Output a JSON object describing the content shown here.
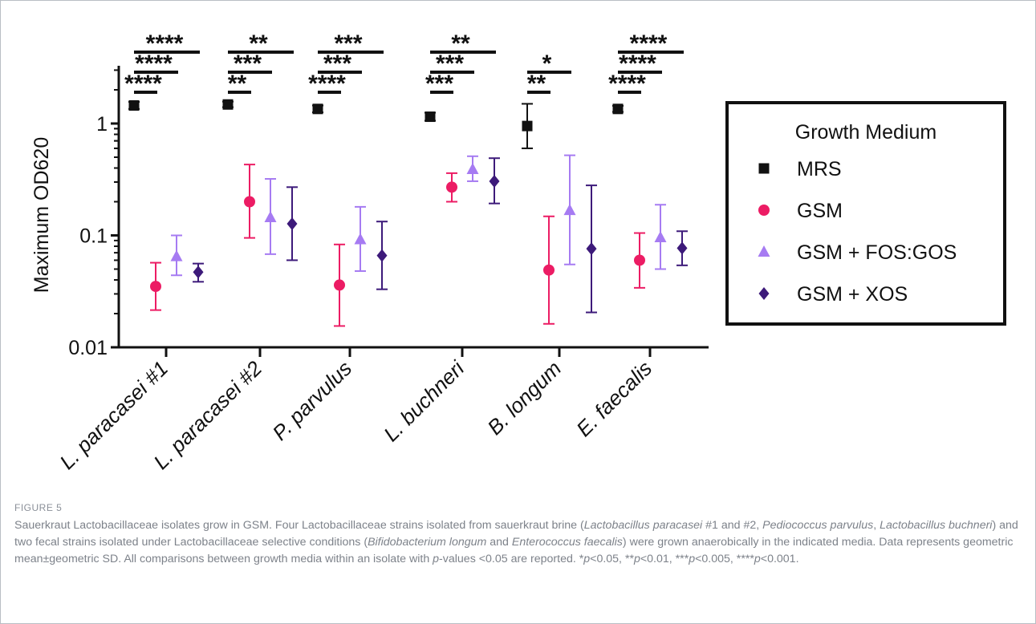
{
  "chart_data": {
    "type": "scatter",
    "yscale": "log",
    "ylabel": "Maximum OD620",
    "ylim": [
      0.01,
      3
    ],
    "yticks": [
      {
        "v": 1,
        "label": "1"
      },
      {
        "v": 0.1,
        "label": "0.1"
      },
      {
        "v": 0.01,
        "label": "0.01"
      }
    ],
    "categories": [
      "L. paracasei #1",
      "L. paracasei #2",
      "P. parvulus",
      "L. buchneri",
      "B. longum",
      "E. faecalis"
    ],
    "legend": {
      "title": "Growth Medium",
      "position": "right"
    },
    "series": [
      {
        "name": "MRS",
        "marker": "square",
        "color": "#111111",
        "values": [
          1.45,
          1.48,
          1.35,
          1.15,
          0.95,
          1.35
        ],
        "err_low": [
          1.35,
          1.4,
          1.26,
          1.06,
          0.6,
          1.27
        ],
        "err_high": [
          1.56,
          1.57,
          1.45,
          1.25,
          1.5,
          1.44
        ]
      },
      {
        "name": "GSM",
        "marker": "circle",
        "color": "#ec1c64",
        "values": [
          0.035,
          0.2,
          0.036,
          0.27,
          0.049,
          0.06
        ],
        "err_low": [
          0.0215,
          0.095,
          0.0155,
          0.2,
          0.0162,
          0.034
        ],
        "err_high": [
          0.057,
          0.43,
          0.083,
          0.36,
          0.148,
          0.105
        ]
      },
      {
        "name": "GSM + FOS:GOS",
        "marker": "triangle",
        "color": "#a67bf2",
        "values": [
          0.065,
          0.145,
          0.092,
          0.39,
          0.168,
          0.096
        ],
        "err_low": [
          0.044,
          0.068,
          0.048,
          0.305,
          0.055,
          0.05
        ],
        "err_high": [
          0.1,
          0.32,
          0.18,
          0.51,
          0.52,
          0.188
        ]
      },
      {
        "name": "GSM + XOS",
        "marker": "diamond",
        "color": "#3d1a7a",
        "values": [
          0.047,
          0.127,
          0.066,
          0.305,
          0.076,
          0.077
        ],
        "err_low": [
          0.0385,
          0.06,
          0.033,
          0.193,
          0.0205,
          0.054
        ],
        "err_high": [
          0.056,
          0.27,
          0.133,
          0.49,
          0.28,
          0.109
        ]
      }
    ],
    "significance": [
      {
        "category": 0,
        "labels": [
          "****",
          "****",
          "****"
        ]
      },
      {
        "category": 1,
        "labels": [
          "**",
          "***",
          "**"
        ]
      },
      {
        "category": 2,
        "labels": [
          "****",
          "***",
          "***"
        ]
      },
      {
        "category": 3,
        "labels": [
          "***",
          "***",
          "**"
        ]
      },
      {
        "category": 4,
        "labels": [
          "**",
          "*"
        ]
      },
      {
        "category": 5,
        "labels": [
          "****",
          "****",
          "****"
        ]
      }
    ]
  },
  "figure": {
    "label": "FIGURE 5",
    "caption_segments": [
      {
        "t": "Sauerkraut Lactobacillaceae isolates grow in GSM. Four Lactobacillaceae strains isolated from sauerkraut brine (",
        "i": false
      },
      {
        "t": "Lactobacillus paracasei",
        "i": true
      },
      {
        "t": " #1 and #2, ",
        "i": false
      },
      {
        "t": "Pediococcus parvulus",
        "i": true
      },
      {
        "t": ", ",
        "i": false
      },
      {
        "t": "Lactobacillus buchneri",
        "i": true
      },
      {
        "t": ") and two fecal strains isolated under Lactobacillaceae selective conditions (",
        "i": false
      },
      {
        "t": "Bifidobacterium longum",
        "i": true
      },
      {
        "t": " and ",
        "i": false
      },
      {
        "t": "Enterococcus faecalis",
        "i": true
      },
      {
        "t": ") were grown anaerobically in the indicated media. Data represents geometric mean±geometric SD. All comparisons between growth media within an isolate with ",
        "i": false
      },
      {
        "t": "p",
        "i": true
      },
      {
        "t": "-values <0.05 are reported. *",
        "i": false
      },
      {
        "t": "p",
        "i": true
      },
      {
        "t": "<0.05, **",
        "i": false
      },
      {
        "t": "p",
        "i": true
      },
      {
        "t": "<0.01, ***",
        "i": false
      },
      {
        "t": "p",
        "i": true
      },
      {
        "t": "<0.005, ****",
        "i": false
      },
      {
        "t": "p",
        "i": true
      },
      {
        "t": "<0.001.",
        "i": false
      }
    ]
  }
}
